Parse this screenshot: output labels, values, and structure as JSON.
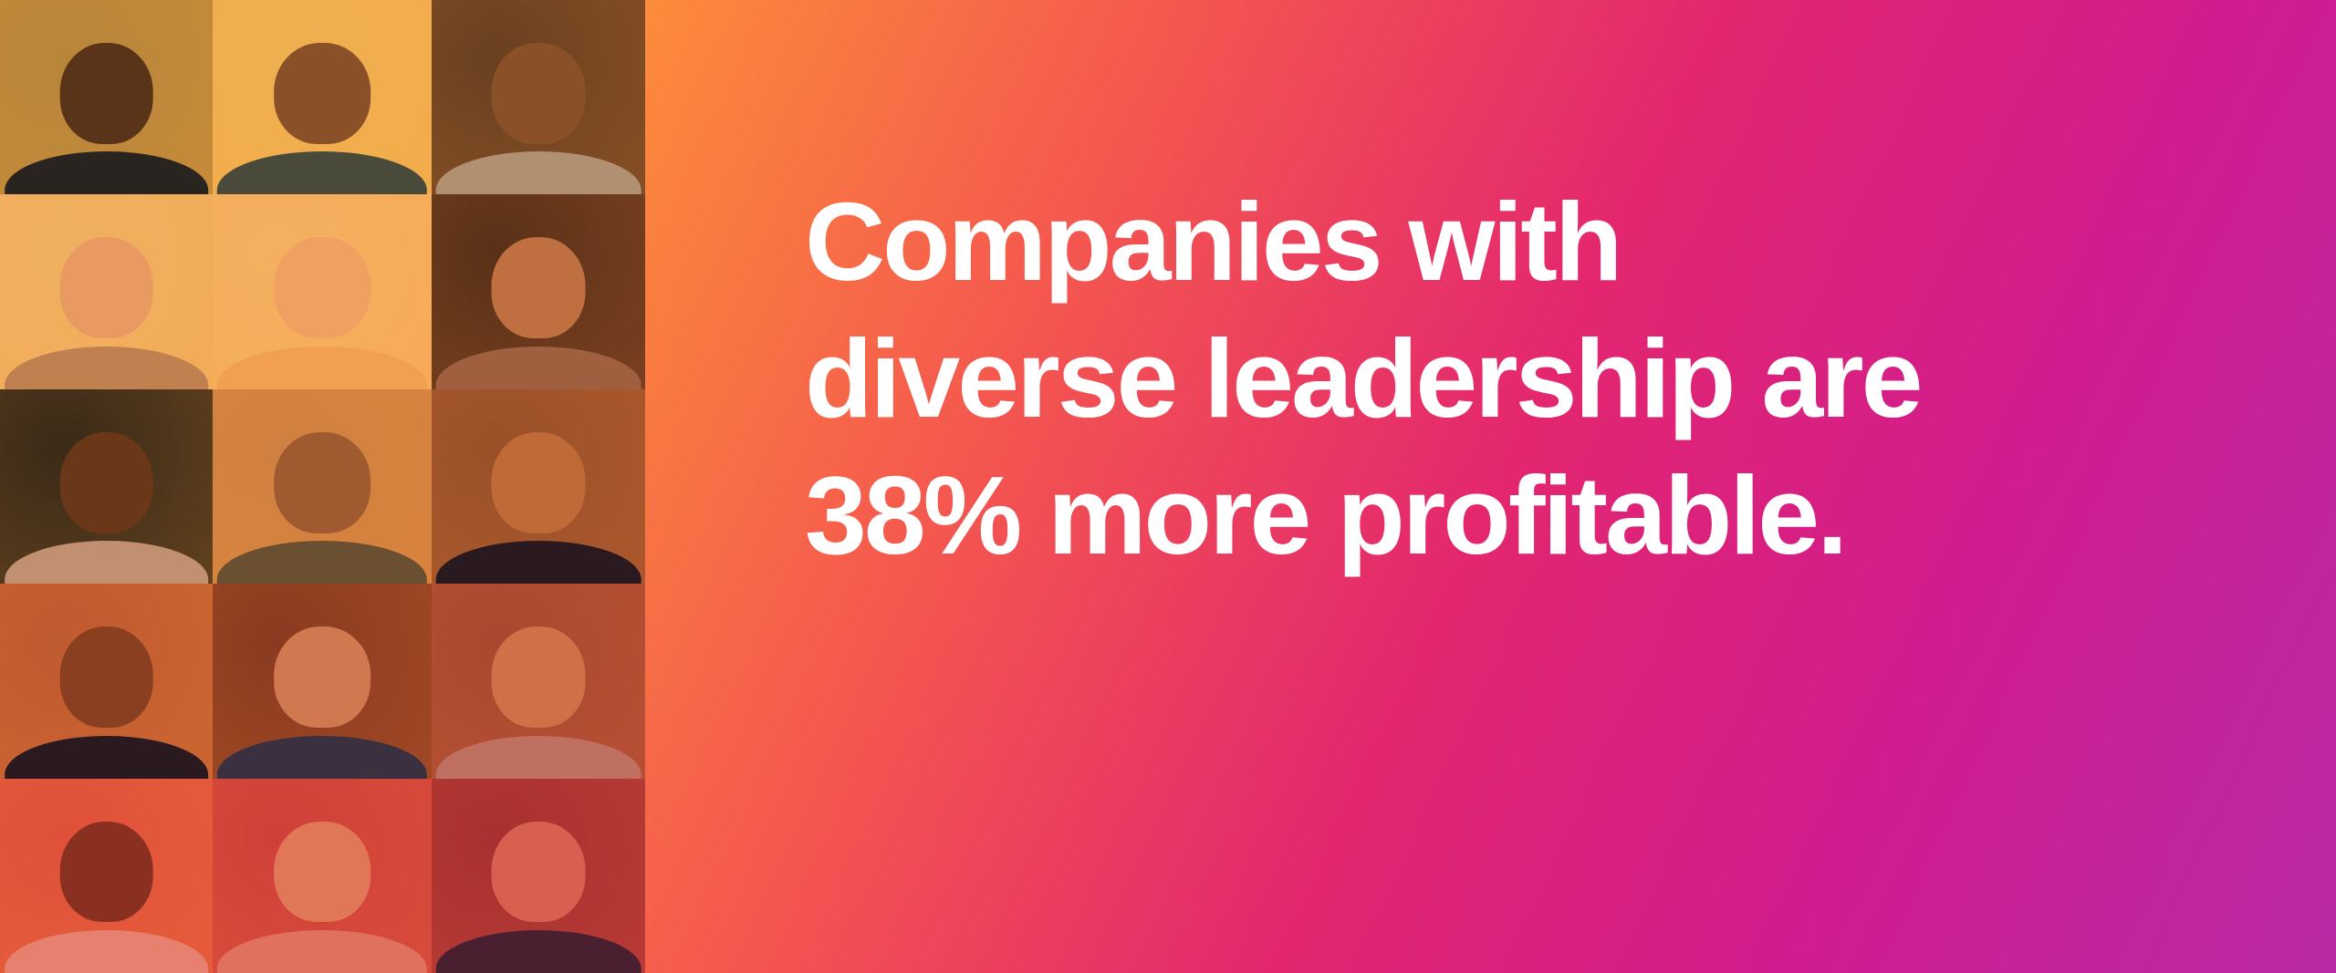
{
  "headline": {
    "lines": [
      "Companies with",
      "diverse leadership are",
      "38% more profitable."
    ]
  },
  "photo_grid": {
    "description_count_rows": 5,
    "cells": [
      {
        "bg": "#b8863a",
        "skin": "#5a3418",
        "shirt": "#2a2420"
      },
      {
        "bg": "#f0b050",
        "skin": "#8a5028",
        "shirt": "#4a4a3a"
      },
      {
        "bg": "#6a4020",
        "skin": "#8a5028",
        "shirt": "#b09070"
      },
      {
        "bg": "#f0b060",
        "skin": "#e89a60",
        "shirt": "#c08050"
      },
      {
        "bg": "#f4b060",
        "skin": "#f0a060",
        "shirt": "#f0a050"
      },
      {
        "bg": "#5a3018",
        "skin": "#c07040",
        "shirt": "#a06040"
      },
      {
        "bg": "#3a2a18",
        "skin": "#6a3818",
        "shirt": "#c09070"
      },
      {
        "bg": "#d08040",
        "skin": "#a05a30",
        "shirt": "#6a5030"
      },
      {
        "bg": "#9a5028",
        "skin": "#c06a38",
        "shirt": "#2a1a20"
      },
      {
        "bg": "#c05a30",
        "skin": "#8a4020",
        "shirt": "#2a1a20"
      },
      {
        "bg": "#8a3a20",
        "skin": "#d07850",
        "shirt": "#3a3040"
      },
      {
        "bg": "#a84830",
        "skin": "#d07048",
        "shirt": "#c07060"
      },
      {
        "bg": "#e0503a",
        "skin": "#8a3020",
        "shirt": "#e88070"
      },
      {
        "bg": "#d0403a",
        "skin": "#e07858",
        "shirt": "#e07060"
      },
      {
        "bg": "#a83030",
        "skin": "#d86050",
        "shirt": "#4a2030"
      }
    ]
  },
  "colors": {
    "gradient_start": "#ff9a35",
    "gradient_mid": "#e3266f",
    "gradient_end": "#b92aa6",
    "text": "#ffffff"
  }
}
